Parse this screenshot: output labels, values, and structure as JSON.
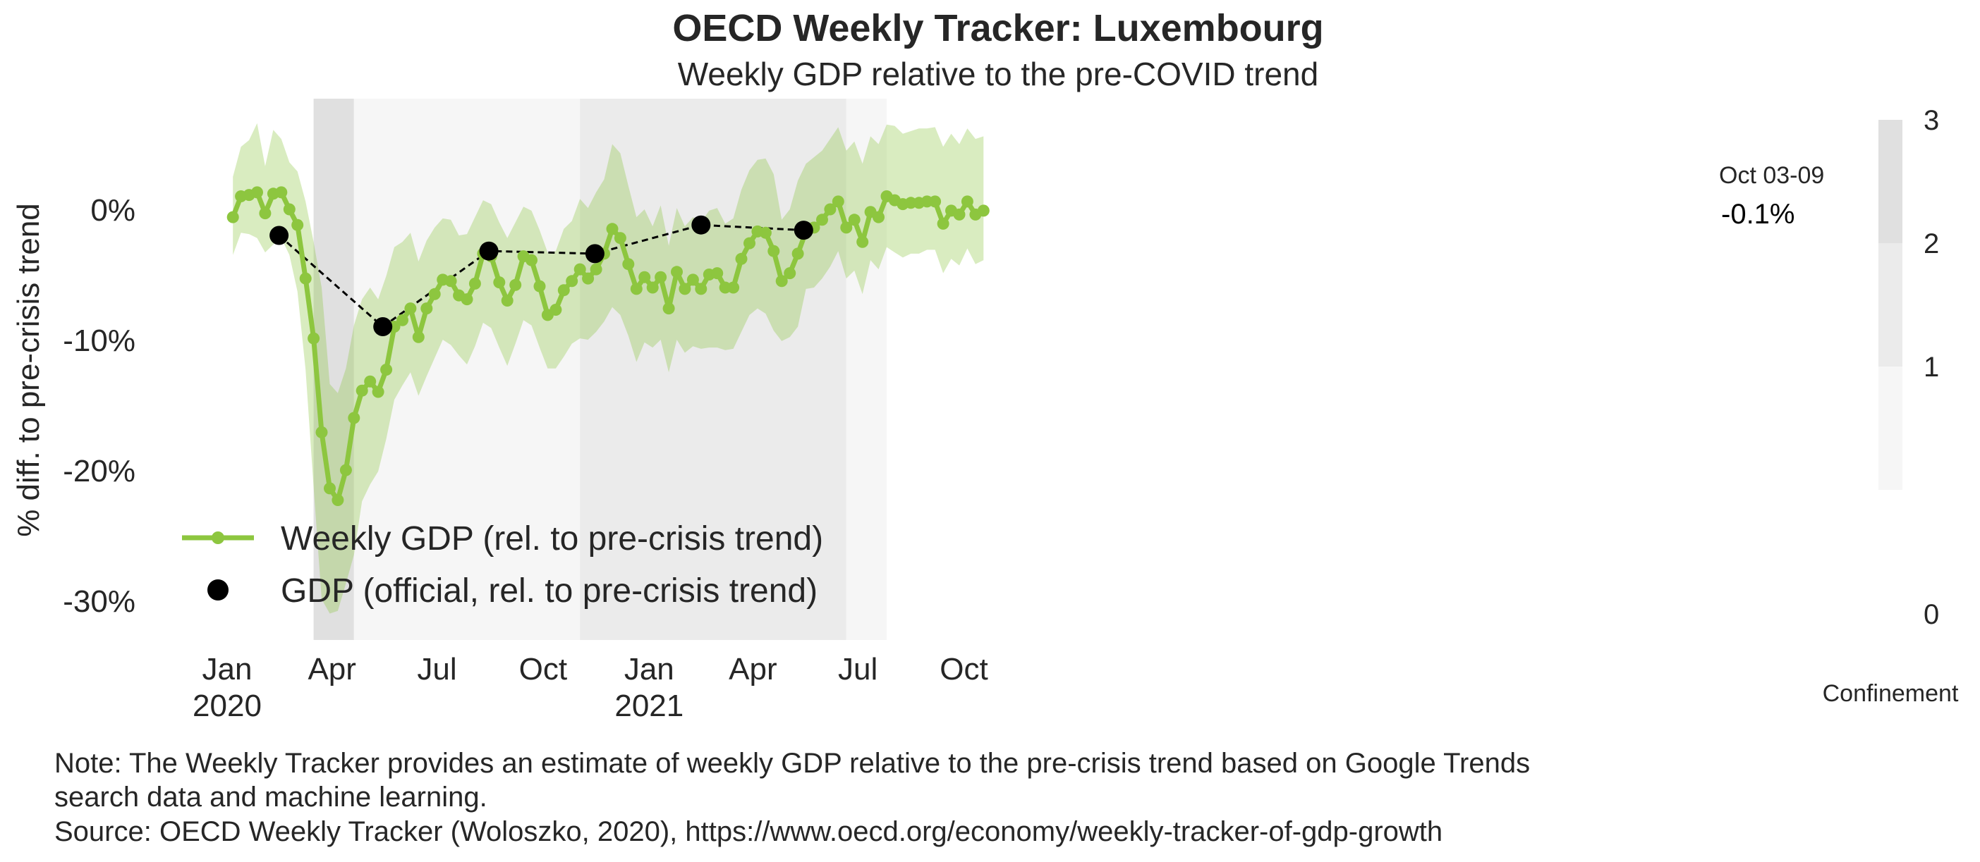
{
  "header": {
    "title": "OECD Weekly Tracker: Luxembourg",
    "subtitle": "Weekly GDP relative to the pre-COVID trend"
  },
  "chart_data": {
    "type": "line",
    "title": "OECD Weekly Tracker: Luxembourg",
    "subtitle": "Weekly GDP relative to the pre-COVID trend",
    "ylabel": "% diff. to pre-crisis trend",
    "xlabel": "",
    "ylim": [
      -33,
      9
    ],
    "y_ticks": [
      {
        "value": 0,
        "label": "0%"
      },
      {
        "value": -10,
        "label": "-10%"
      },
      {
        "value": -20,
        "label": "-20%"
      },
      {
        "value": -30,
        "label": "-30%"
      }
    ],
    "x_ticks": [
      {
        "date": "2020-01-01",
        "label": "Jan",
        "year": "2020"
      },
      {
        "date": "2020-04-01",
        "label": "Apr",
        "year": ""
      },
      {
        "date": "2020-07-01",
        "label": "Jul",
        "year": ""
      },
      {
        "date": "2020-10-01",
        "label": "Oct",
        "year": ""
      },
      {
        "date": "2021-01-01",
        "label": "Jan",
        "year": "2021"
      },
      {
        "date": "2021-04-01",
        "label": "Apr",
        "year": ""
      },
      {
        "date": "2021-07-01",
        "label": "Jul",
        "year": ""
      },
      {
        "date": "2021-10-01",
        "label": "Oct",
        "year": ""
      }
    ],
    "grid": false,
    "legend_position": "bottom-left",
    "series": [
      {
        "name": "Weekly GDP (rel. to pre-crisis trend)",
        "type": "line-markers",
        "color": "#8dc63f",
        "band_color": "#8dc63f",
        "start_date": "2020-01-06",
        "interval_days": 7,
        "values": [
          -0.6,
          1.0,
          1.1,
          1.3,
          -0.3,
          1.2,
          1.3,
          0.0,
          -1.2,
          -5.3,
          -9.9,
          -17.1,
          -21.4,
          -22.3,
          -20.0,
          -16.0,
          -13.9,
          -13.2,
          -14.0,
          -12.3,
          -9.0,
          -8.5,
          -7.6,
          -9.8,
          -7.6,
          -6.5,
          -5.4,
          -5.5,
          -6.6,
          -6.9,
          -5.7,
          -3.4,
          -3.6,
          -5.6,
          -7.0,
          -5.8,
          -3.6,
          -3.9,
          -5.9,
          -8.1,
          -7.7,
          -6.2,
          -5.5,
          -4.6,
          -5.3,
          -4.6,
          -3.4,
          -1.5,
          -2.2,
          -4.2,
          -6.1,
          -5.2,
          -6.0,
          -5.2,
          -7.6,
          -4.8,
          -6.1,
          -5.4,
          -6.1,
          -5.0,
          -4.9,
          -6.0,
          -6.0,
          -3.8,
          -2.6,
          -1.7,
          -1.8,
          -3.2,
          -5.5,
          -4.9,
          -3.4,
          -1.7,
          -1.4,
          -0.8,
          0.0,
          0.6,
          -1.4,
          -0.8,
          -2.5,
          -0.2,
          -0.6,
          1.0,
          0.7,
          0.4,
          0.5,
          0.5,
          0.6,
          0.6,
          -1.1,
          -0.1,
          -0.4,
          0.6,
          -0.4,
          -0.1
        ],
        "lower": [
          -3.5,
          -1.8,
          -1.9,
          -2.2,
          -3.3,
          -2.7,
          -2.2,
          -3.5,
          -6.3,
          -12.3,
          -21.3,
          -29.9,
          -31.0,
          -30.8,
          -28.7,
          -26.5,
          -22.4,
          -21.1,
          -20.1,
          -17.6,
          -14.6,
          -13.5,
          -12.5,
          -14.3,
          -12.8,
          -11.4,
          -10.0,
          -10.4,
          -11.2,
          -11.9,
          -10.5,
          -8.7,
          -9.1,
          -10.6,
          -12.0,
          -10.3,
          -8.5,
          -8.9,
          -10.6,
          -12.2,
          -12.2,
          -11.3,
          -10.3,
          -9.9,
          -10.0,
          -9.4,
          -8.6,
          -7.5,
          -8.1,
          -9.7,
          -11.7,
          -10.2,
          -10.6,
          -10.0,
          -12.5,
          -10.0,
          -11.0,
          -10.5,
          -10.7,
          -10.6,
          -10.6,
          -10.8,
          -10.7,
          -9.4,
          -8.1,
          -7.6,
          -8.0,
          -9.3,
          -10.1,
          -9.8,
          -9.0,
          -6.1,
          -6.0,
          -5.3,
          -4.4,
          -3.2,
          -5.3,
          -4.7,
          -6.5,
          -3.9,
          -4.6,
          -2.9,
          -3.3,
          -3.7,
          -3.4,
          -3.4,
          -3.1,
          -3.1,
          -4.9,
          -3.8,
          -4.3,
          -3.0,
          -4.2,
          -3.9
        ],
        "upper": [
          2.5,
          4.8,
          5.3,
          6.6,
          3.3,
          6.1,
          5.4,
          3.6,
          2.9,
          0.6,
          -2.5,
          -6.0,
          -13.4,
          -14.1,
          -12.2,
          -8.9,
          -6.9,
          -6.0,
          -6.9,
          -5.1,
          -2.9,
          -2.5,
          -1.8,
          -4.0,
          -2.4,
          -1.4,
          -0.7,
          -0.8,
          -2.0,
          -1.9,
          -0.6,
          0.7,
          0.4,
          -1.0,
          -2.2,
          -1.0,
          0.2,
          -0.1,
          -1.6,
          -3.3,
          -3.2,
          -1.5,
          -0.9,
          0.8,
          0.1,
          1.3,
          2.3,
          5.0,
          4.3,
          1.8,
          -0.6,
          0.0,
          -1.3,
          0.3,
          -2.8,
          0.1,
          -1.3,
          -0.6,
          -1.0,
          -0.1,
          0.1,
          -1.1,
          -0.7,
          1.5,
          3.0,
          3.8,
          3.9,
          2.7,
          -0.8,
          0.0,
          2.2,
          3.5,
          4.0,
          4.5,
          5.4,
          6.3,
          4.5,
          5.2,
          3.5,
          5.6,
          5.0,
          6.5,
          6.4,
          5.8,
          6.0,
          6.2,
          6.2,
          6.3,
          4.8,
          5.8,
          5.0,
          6.2,
          5.4,
          5.6
        ]
      },
      {
        "name": "GDP (official, rel. to pre-crisis trend)",
        "type": "points-dashed",
        "color": "#000000",
        "points": [
          {
            "date": "2020-02-15",
            "value": -2.0
          },
          {
            "date": "2020-05-15",
            "value": -9.0
          },
          {
            "date": "2020-08-15",
            "value": -3.2
          },
          {
            "date": "2020-11-15",
            "value": -3.4
          },
          {
            "date": "2021-02-15",
            "value": -1.2
          },
          {
            "date": "2021-05-15",
            "value": -1.6
          }
        ]
      }
    ],
    "confinement_periods": [
      {
        "start": "2020-03-16",
        "end": "2020-04-20",
        "level": 3
      },
      {
        "start": "2020-04-20",
        "end": "2020-11-02",
        "level": 1
      },
      {
        "start": "2020-11-02",
        "end": "2021-06-21",
        "level": 2
      },
      {
        "start": "2021-06-21",
        "end": "2021-07-26",
        "level": 1
      }
    ],
    "colorbar": {
      "label": "Confinement",
      "ticks": [
        "0",
        "1",
        "2",
        "3"
      ],
      "colors": [
        "#f6f6f6",
        "#ebebeb",
        "#e0e0e0"
      ]
    },
    "end_annotation": {
      "date_label": "Oct 03-09",
      "value_label": "-0.1%"
    }
  },
  "footer": {
    "note_line1": "Note: The Weekly Tracker provides an estimate of weekly GDP relative to the pre-crisis trend based on Google Trends",
    "note_line2": "search data and machine learning.",
    "source": "Source: OECD Weekly Tracker (Woloszko, 2020), https://www.oecd.org/economy/weekly-tracker-of-gdp-growth"
  }
}
